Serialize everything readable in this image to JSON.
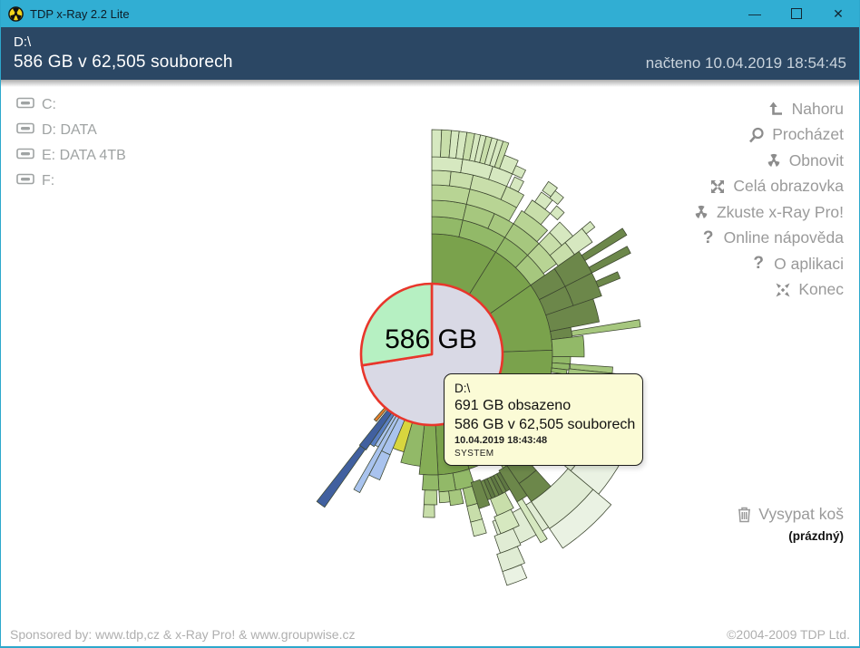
{
  "window": {
    "title": "TDP x-Ray 2.2 Lite",
    "controls": {
      "minimize": "—",
      "maximize": "",
      "close": "✕"
    }
  },
  "header": {
    "path": "D:\\",
    "size_line": "586 GB v 62,505 souborech",
    "loaded": "načteno 10.04.2019 18:54:45"
  },
  "drives": [
    {
      "label": "C:"
    },
    {
      "label": "D: DATA"
    },
    {
      "label": "E: DATA 4TB"
    },
    {
      "label": "F:"
    }
  ],
  "menu": [
    {
      "icon": "up-icon",
      "label": "Nahoru"
    },
    {
      "icon": "search-icon",
      "label": "Procházet"
    },
    {
      "icon": "radiation-icon",
      "label": "Obnovit"
    },
    {
      "icon": "fullscreen-icon",
      "label": "Celá obrazovka"
    },
    {
      "icon": "radiation-icon",
      "label": "Zkuste x-Ray Pro!"
    },
    {
      "icon": "question-icon",
      "label": "Online nápověda"
    },
    {
      "icon": "question-icon",
      "label": "O aplikaci"
    },
    {
      "icon": "exit-icon",
      "label": "Konec"
    }
  ],
  "trash": {
    "label": "Vysypat koš",
    "status": "(prázdný)"
  },
  "footer": {
    "left": "Sponsored by: www.tdp,cz & x-Ray Pro! & www.groupwise.cz",
    "right": "©2004-2009 TDP Ltd."
  },
  "tooltip": {
    "line1": "D:\\",
    "line2": "691 GB obsazeno",
    "line3": "586 GB v 62,505 souborech",
    "line4": "10.04.2019 18:43:48",
    "line5": "SYSTEM"
  },
  "chart_data": {
    "type": "sunburst",
    "title": "Disk usage radial map of D:\\",
    "center_label": "586 GB",
    "center": [
      475,
      391
    ],
    "pie": {
      "radius": 78,
      "outline_color": "#E8362B",
      "slices": [
        {
          "name": "occupied",
          "from_deg": 0,
          "to_deg": 261,
          "color": "#D9D9E5"
        },
        {
          "name": "free",
          "from_deg": 261,
          "to_deg": 360,
          "color": "#B6F0C2"
        }
      ]
    },
    "palette": {
      "G1": "#7AA24C",
      "G1b": "#85AD56",
      "G2": "#92B968",
      "G3": "#A6C77E",
      "G4": "#B8D494",
      "G5": "#C8DEAA",
      "G6": "#D6E8C0",
      "DK": "#6C874A",
      "DKd": "#5F7843",
      "PL1": "#E0ECD4",
      "PL2": "#EAF2E3",
      "YEL": "#D8D63E",
      "ORG": "#E07E2E",
      "LBL": "#A9C3EE",
      "MBL": "#5B80C4",
      "DBL": "#41609F"
    },
    "stroke": "#3C462F",
    "segments": [
      [
        106,
        118,
        152,
        186,
        "PL1"
      ],
      [
        106,
        118,
        186,
        224,
        "PL2"
      ],
      [
        118,
        130,
        160,
        200,
        "PL1"
      ],
      [
        118,
        130,
        200,
        240,
        "PL2"
      ],
      [
        130,
        146,
        196,
        232,
        "PL1"
      ],
      [
        130,
        146,
        232,
        258,
        "PL2"
      ],
      [
        146,
        160,
        196,
        230,
        "PL1"
      ],
      [
        152,
        158,
        172,
        192,
        "G5"
      ],
      [
        153,
        159,
        192,
        212,
        "G6"
      ],
      [
        155,
        161,
        212,
        232,
        "PL1"
      ],
      [
        156,
        162,
        232,
        252,
        "PL1"
      ],
      [
        157,
        162,
        252,
        268,
        "PL2"
      ],
      [
        148,
        150,
        172,
        240,
        "G6"
      ],
      [
        163,
        167,
        152,
        172,
        "G3"
      ],
      [
        163,
        167,
        172,
        190,
        "G5"
      ],
      [
        163,
        167,
        190,
        206,
        "G6"
      ],
      [
        168,
        173,
        152,
        168,
        "G3"
      ],
      [
        173,
        177,
        152,
        164,
        "G4"
      ],
      [
        0,
        32,
        78,
        133,
        "G1"
      ],
      [
        32,
        55,
        78,
        133,
        "G1"
      ],
      [
        55,
        88,
        78,
        133,
        "G1"
      ],
      [
        88,
        130,
        78,
        133,
        "G1"
      ],
      [
        130,
        148,
        78,
        133,
        "G1"
      ],
      [
        148,
        162,
        78,
        133,
        "G1"
      ],
      [
        162,
        177,
        78,
        133,
        "G1"
      ],
      [
        177,
        186,
        78,
        133,
        "G1b"
      ],
      [
        186,
        196,
        78,
        124,
        "G2"
      ],
      [
        0,
        13,
        133,
        152,
        "G2"
      ],
      [
        13,
        32,
        133,
        152,
        "G2"
      ],
      [
        32,
        44,
        133,
        152,
        "G2"
      ],
      [
        44,
        55,
        133,
        152,
        "G3"
      ],
      [
        130,
        140,
        133,
        152,
        "G2"
      ],
      [
        140,
        148,
        133,
        152,
        "G3"
      ],
      [
        162,
        170,
        133,
        152,
        "G2"
      ],
      [
        170,
        177,
        133,
        152,
        "G2"
      ],
      [
        177,
        184,
        133,
        150,
        "G2"
      ],
      [
        178,
        183,
        150,
        166,
        "G4"
      ],
      [
        179,
        183,
        166,
        180,
        "G5"
      ],
      [
        0,
        13,
        152,
        170,
        "G3"
      ],
      [
        13,
        24,
        152,
        170,
        "G3"
      ],
      [
        24,
        32,
        152,
        170,
        "G3"
      ],
      [
        32,
        44,
        152,
        170,
        "G3"
      ],
      [
        44,
        54,
        152,
        170,
        "G4"
      ],
      [
        0,
        13,
        170,
        187,
        "G4"
      ],
      [
        13,
        30,
        170,
        187,
        "G4"
      ],
      [
        32,
        43,
        170,
        187,
        "G4"
      ],
      [
        44,
        52,
        170,
        187,
        "G5"
      ],
      [
        0,
        6,
        187,
        203,
        "G5"
      ],
      [
        6,
        13,
        187,
        203,
        "G5"
      ],
      [
        13,
        24,
        187,
        203,
        "G5"
      ],
      [
        24,
        30,
        187,
        203,
        "G5"
      ],
      [
        33,
        40,
        187,
        203,
        "G5"
      ],
      [
        44,
        50,
        187,
        203,
        "G6"
      ],
      [
        0,
        9,
        203,
        218,
        "G6"
      ],
      [
        9,
        18,
        203,
        218,
        "G6"
      ],
      [
        18,
        24,
        203,
        218,
        "G6"
      ],
      [
        25,
        28,
        203,
        216,
        "G6"
      ],
      [
        34,
        38,
        203,
        216,
        "G6"
      ],
      [
        40,
        43,
        203,
        214,
        "G6"
      ],
      [
        0,
        2.5,
        218,
        248,
        "G6"
      ],
      [
        2.5,
        5,
        218,
        248,
        "G5"
      ],
      [
        5,
        7,
        218,
        248,
        "G6"
      ],
      [
        7,
        9,
        218,
        248,
        "G6"
      ],
      [
        9,
        11,
        218,
        248,
        "G5"
      ],
      [
        11,
        12.5,
        218,
        248,
        "G6"
      ],
      [
        12.5,
        14,
        218,
        248,
        "G6"
      ],
      [
        14,
        15.5,
        218,
        248,
        "G5"
      ],
      [
        15.5,
        17,
        218,
        248,
        "G6"
      ],
      [
        17,
        18.5,
        218,
        248,
        "G6"
      ],
      [
        18.5,
        20,
        218,
        248,
        "G5"
      ],
      [
        20,
        24,
        218,
        234,
        "G6"
      ],
      [
        24,
        27,
        218,
        228,
        "G6"
      ],
      [
        34,
        37,
        218,
        230,
        "G6"
      ],
      [
        37,
        40,
        216,
        226,
        "G6"
      ],
      [
        50,
        55,
        170,
        192,
        "G5"
      ],
      [
        50,
        55,
        192,
        216,
        "G6"
      ],
      [
        50,
        52,
        216,
        228,
        "G6"
      ],
      [
        55,
        63,
        133,
        165,
        "DK"
      ],
      [
        55,
        63,
        165,
        198,
        "DK"
      ],
      [
        63,
        71,
        133,
        165,
        "DK"
      ],
      [
        63,
        71,
        165,
        198,
        "DK"
      ],
      [
        71,
        79,
        133,
        188,
        "DK"
      ],
      [
        56.5,
        58.5,
        198,
        252,
        "DK"
      ],
      [
        61,
        63,
        198,
        246,
        "DK"
      ],
      [
        66,
        68,
        198,
        224,
        "DK"
      ],
      [
        79,
        83,
        133,
        156,
        "DK"
      ],
      [
        83,
        87,
        133,
        150,
        "DK"
      ],
      [
        80.5,
        82.5,
        156,
        232,
        "G3"
      ],
      [
        83,
        91,
        133,
        168,
        "G2"
      ],
      [
        91,
        94,
        133,
        153,
        "G2"
      ],
      [
        94,
        96.5,
        133,
        152,
        "G2"
      ],
      [
        96.5,
        98.5,
        133,
        150,
        "G2"
      ],
      [
        94,
        96,
        153,
        200,
        "G3"
      ],
      [
        96,
        98,
        152,
        226,
        "G3"
      ],
      [
        98,
        100,
        150,
        160,
        "G3"
      ],
      [
        100,
        103,
        133,
        142,
        "G2"
      ],
      [
        138,
        146,
        148,
        172,
        "DK"
      ],
      [
        138,
        146,
        172,
        196,
        "DK"
      ],
      [
        146,
        150,
        148,
        188,
        "DK"
      ],
      [
        150,
        151.5,
        150,
        172,
        "DKd"
      ],
      [
        151.5,
        153,
        150,
        172,
        "DK"
      ],
      [
        153,
        154.5,
        150,
        172,
        "DKd"
      ],
      [
        154.5,
        156,
        150,
        172,
        "DK"
      ],
      [
        156,
        157.5,
        150,
        172,
        "DKd"
      ],
      [
        157.5,
        159,
        150,
        172,
        "DK"
      ],
      [
        159,
        163,
        148,
        178,
        "DK"
      ],
      [
        196,
        203,
        78,
        112,
        "YEL"
      ],
      [
        202.5,
        207.5,
        78,
        120,
        "LBL"
      ],
      [
        202.5,
        207.5,
        120,
        150,
        "LBL"
      ],
      [
        207.5,
        210,
        78,
        172,
        "LBL"
      ],
      [
        210,
        212,
        78,
        118,
        "LBL"
      ],
      [
        212,
        214.5,
        78,
        120,
        "MBL"
      ],
      [
        214.5,
        218.5,
        78,
        128,
        "DBL"
      ],
      [
        215,
        218,
        128,
        206,
        "DBL"
      ],
      [
        219.5,
        221.5,
        78,
        96,
        "ORG"
      ]
    ]
  }
}
